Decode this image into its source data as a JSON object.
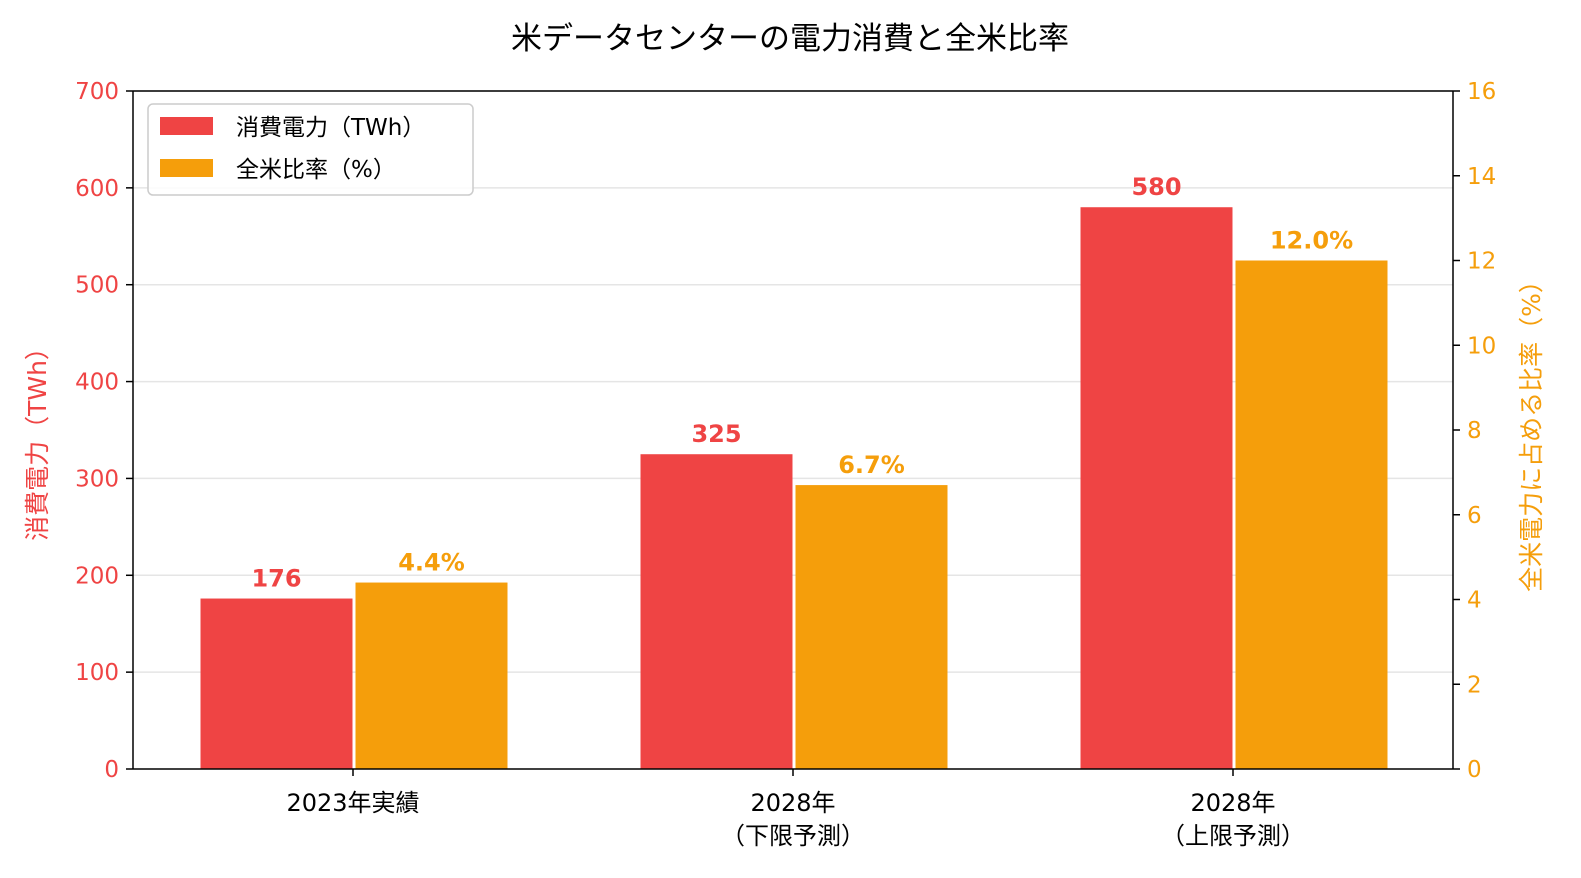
{
  "colors": {
    "primary": "#EF4444",
    "secondary": "#F59E0B",
    "grid": "#E5E5E5",
    "axis": "#000000"
  },
  "chart_data": {
    "type": "bar",
    "title": "米データセンターの電力消費と全米比率",
    "categories": [
      [
        "2023年実績"
      ],
      [
        "2028年",
        "（下限予測）"
      ],
      [
        "2028年",
        "（上限予測）"
      ]
    ],
    "series": [
      {
        "name": "消費電力（TWh）",
        "axis": "left",
        "values": [
          176,
          325,
          580
        ],
        "labels": [
          "176",
          "325",
          "580"
        ],
        "color": "#EF4444"
      },
      {
        "name": "全米比率（%）",
        "axis": "right",
        "values": [
          4.4,
          6.7,
          12.0
        ],
        "labels": [
          "4.4%",
          "6.7%",
          "12.0%"
        ],
        "color": "#F59E0B"
      }
    ],
    "y_left": {
      "label": "消費電力（TWh）",
      "range": [
        0,
        700
      ],
      "ticks": [
        0,
        100,
        200,
        300,
        400,
        500,
        600,
        700
      ]
    },
    "y_right": {
      "label": "全米電力に占める比率（%）",
      "range": [
        0,
        16
      ],
      "ticks": [
        0,
        2,
        4,
        6,
        8,
        10,
        12,
        14,
        16
      ]
    },
    "grid": true,
    "legend_position": "top-left"
  }
}
